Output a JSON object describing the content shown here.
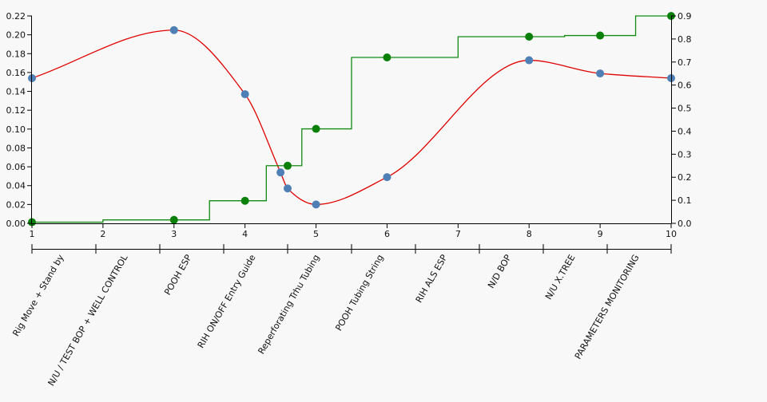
{
  "chart_data": {
    "type": "line",
    "title": "",
    "xlabel": "",
    "ylabel": "",
    "x_ticks": [
      1,
      2,
      3,
      4,
      5,
      6,
      7,
      8,
      9,
      10
    ],
    "x_range": [
      1,
      10
    ],
    "y_left": {
      "range": [
        0,
        0.22
      ],
      "ticks": [
        "0.00",
        "0.02",
        "0.04",
        "0.06",
        "0.08",
        "0.10",
        "0.12",
        "0.14",
        "0.16",
        "0.18",
        "0.20",
        "0.22"
      ]
    },
    "y_right": {
      "range": [
        0,
        0.9
      ],
      "ticks": [
        "0.0",
        "0.1",
        "0.2",
        "0.3",
        "0.4",
        "0.5",
        "0.6",
        "0.7",
        "0.8",
        "0.9"
      ]
    },
    "categories": [
      "Rig Move + Stand by",
      "N/U / TEST BOP + WELL CONTROL",
      "POOH ESP",
      "RIH ON/OFF Entry Guide",
      "Reperforating Trhu Tubing",
      "POOH Tubing String",
      "RIH ALS ESP",
      "N/D BOP",
      "N/U X.TREE",
      "PARAMETERS MONITORING"
    ],
    "series": [
      {
        "axis": "left",
        "style": "smooth-line-with-points",
        "line_color": "#e00000",
        "point_color": "#4e7fb5",
        "points": [
          [
            1,
            0.154
          ],
          [
            3,
            0.205
          ],
          [
            4,
            0.137
          ],
          [
            4.5,
            0.054
          ],
          [
            4.6,
            0.037
          ],
          [
            5,
            0.02
          ],
          [
            6,
            0.049
          ],
          [
            8,
            0.173
          ],
          [
            9,
            0.159
          ],
          [
            10,
            0.154
          ]
        ]
      },
      {
        "axis": "right",
        "style": "step-line-with-points",
        "line_color": "#138a13",
        "point_color": "#0a800a",
        "points": [
          [
            1,
            0.005
          ],
          [
            3,
            0.015
          ],
          [
            4,
            0.098
          ],
          [
            4.6,
            0.25
          ],
          [
            5,
            0.41
          ],
          [
            6,
            0.72
          ],
          [
            8,
            0.81
          ],
          [
            9,
            0.815
          ],
          [
            10,
            0.9
          ]
        ]
      }
    ]
  }
}
